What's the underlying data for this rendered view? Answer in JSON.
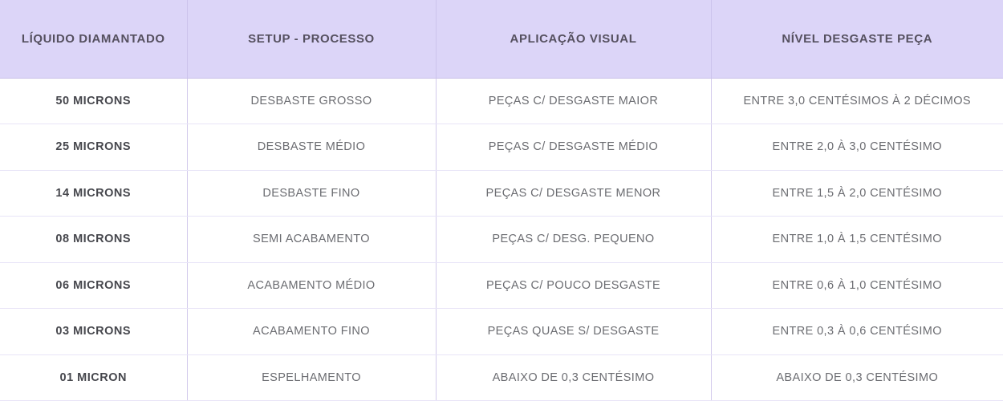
{
  "table": {
    "columns": [
      {
        "key": "liquido-diamantado",
        "label": "LÍQUIDO DIAMANTADO"
      },
      {
        "key": "setup-processo",
        "label": "SETUP - PROCESSO"
      },
      {
        "key": "aplicacao-visual",
        "label": "APLICAÇÃO VISUAL"
      },
      {
        "key": "nivel-desgaste-peca",
        "label": "NÍVEL DESGASTE PEÇA"
      }
    ],
    "rows": [
      [
        "50 MICRONS",
        "DESBASTE GROSSO",
        "PEÇAS C/ DESGASTE MAIOR",
        "ENTRE 3,0 CENTÉSIMOS À 2 DÉCIMOS"
      ],
      [
        "25 MICRONS",
        "DESBASTE MÉDIO",
        "PEÇAS C/ DESGASTE MÉDIO",
        "ENTRE 2,0 À 3,0 CENTÉSIMO"
      ],
      [
        "14 MICRONS",
        "DESBASTE FINO",
        "PEÇAS C/ DESGASTE MENOR",
        "ENTRE 1,5 À 2,0 CENTÉSIMO"
      ],
      [
        "08 MICRONS",
        "SEMI ACABAMENTO",
        "PEÇAS C/ DESG. PEQUENO",
        "ENTRE 1,0 À 1,5 CENTÉSIMO"
      ],
      [
        "06 MICRONS",
        "ACABAMENTO MÉDIO",
        "PEÇAS C/ POUCO DESGASTE",
        "ENTRE 0,6 À 1,0 CENTÉSIMO"
      ],
      [
        "03 MICRONS",
        "ACABAMENTO FINO",
        "PEÇAS QUASE S/ DESGASTE",
        "ENTRE 0,3 À 0,6 CENTÉSIMO"
      ],
      [
        "01 MICRON",
        "ESPELHAMENTO",
        "ABAIXO DE 0,3 CENTÉSIMO",
        "ABAIXO DE 0,3 CENTÉSIMO"
      ]
    ]
  },
  "colors": {
    "header_bg": "#dcd5f8",
    "header_text": "#55505f",
    "row_bg": "#ffffff",
    "first_col_text": "#46474d",
    "body_text": "#6b6c71",
    "vertical_border": "#d2caec",
    "horizontal_border": "#e8e4f7"
  }
}
